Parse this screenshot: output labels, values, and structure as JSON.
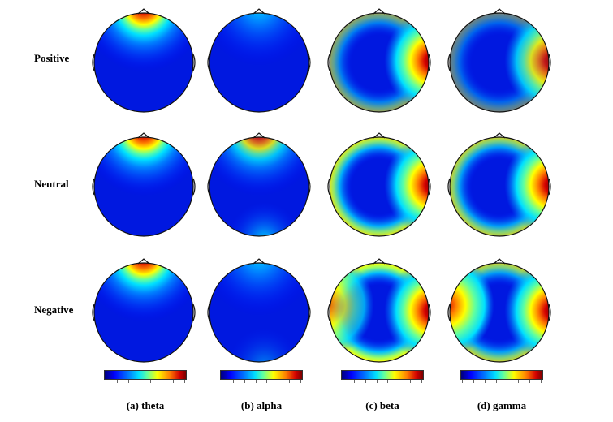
{
  "rows": [
    {
      "label": "Positive"
    },
    {
      "label": "Neutral"
    },
    {
      "label": "Negative"
    }
  ],
  "bands": [
    {
      "label": "(a) theta"
    },
    {
      "label": "(b) alpha"
    },
    {
      "label": "(c) beta"
    },
    {
      "label": "(d) gamma"
    }
  ],
  "colors": {
    "low": "#00007a",
    "mid_low": "#0040ff",
    "mid": "#00e0ff",
    "mid_high": "#ffff00",
    "high": "#d40000"
  }
}
